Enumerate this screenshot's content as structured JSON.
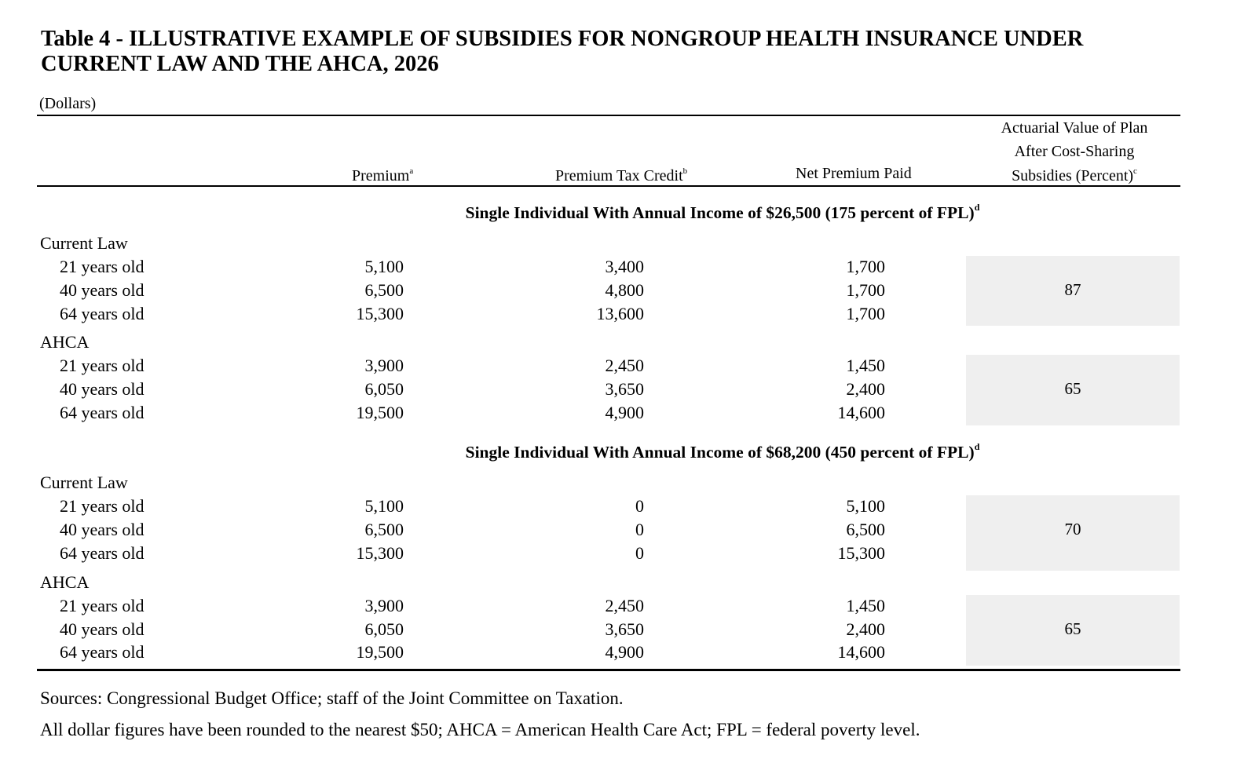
{
  "title": {
    "line1": "Table 4 - ILLUSTRATIVE EXAMPLE OF SUBSIDIES FOR NONGROUP HEALTH INSURANCE UNDER",
    "line2": "CURRENT LAW AND THE AHCA, 2026"
  },
  "unit_label": "(Dollars)",
  "headers": {
    "premium": "Premium",
    "premium_sup": "a",
    "tax_credit": "Premium Tax Credit",
    "tax_credit_sup": "b",
    "net_premium": "Net Premium Paid",
    "av_line1": "Actuarial Value of Plan",
    "av_line2": "After Cost-Sharing",
    "av_line3": "Subsidies (Percent)",
    "av_sup": "c"
  },
  "sections": [
    {
      "title": "Single Individual With Annual Income of $26,500 (175 percent of FPL)",
      "sup": "d",
      "groups": [
        {
          "label": "Current Law",
          "actuarial_value": "87",
          "rows": [
            {
              "age": "21 years old",
              "premium": "5,100",
              "tax_credit": "3,400",
              "net": "1,700"
            },
            {
              "age": "40 years old",
              "premium": "6,500",
              "tax_credit": "4,800",
              "net": "1,700"
            },
            {
              "age": "64 years old",
              "premium": "15,300",
              "tax_credit": "13,600",
              "net": "1,700"
            }
          ]
        },
        {
          "label": "AHCA",
          "actuarial_value": "65",
          "rows": [
            {
              "age": "21 years old",
              "premium": "3,900",
              "tax_credit": "2,450",
              "net": "1,450"
            },
            {
              "age": "40 years old",
              "premium": "6,050",
              "tax_credit": "3,650",
              "net": "2,400"
            },
            {
              "age": "64 years old",
              "premium": "19,500",
              "tax_credit": "4,900",
              "net": "14,600"
            }
          ]
        }
      ]
    },
    {
      "title": "Single Individual With Annual Income of $68,200 (450 percent of FPL)",
      "sup": "d",
      "groups": [
        {
          "label": "Current Law",
          "actuarial_value": "70",
          "rows": [
            {
              "age": "21 years old",
              "premium": "5,100",
              "tax_credit": "0",
              "net": "5,100"
            },
            {
              "age": "40 years old",
              "premium": "6,500",
              "tax_credit": "0",
              "net": "6,500"
            },
            {
              "age": "64 years old",
              "premium": "15,300",
              "tax_credit": "0",
              "net": "15,300"
            }
          ]
        },
        {
          "label": "AHCA",
          "actuarial_value": "65",
          "rows": [
            {
              "age": "21 years old",
              "premium": "3,900",
              "tax_credit": "2,450",
              "net": "1,450"
            },
            {
              "age": "40 years old",
              "premium": "6,050",
              "tax_credit": "3,650",
              "net": "2,400"
            },
            {
              "age": "64 years old",
              "premium": "19,500",
              "tax_credit": "4,900",
              "net": "14,600"
            }
          ]
        }
      ]
    }
  ],
  "notes": {
    "sources": "Sources: Congressional Budget Office; staff of the Joint Committee on Taxation.",
    "rounding": "All dollar figures have been rounded to the nearest $50; AHCA = American Health Care Act; FPL = federal poverty level."
  }
}
